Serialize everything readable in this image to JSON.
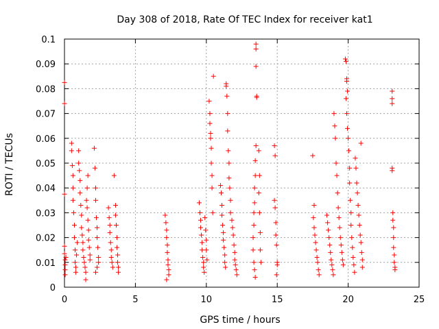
{
  "chart_data": {
    "type": "scatter",
    "title": "Day 308 of 2018, Rate Of TEC Index for receiver kat1",
    "xlabel": "GPS time / hours",
    "ylabel": "ROTI / TECUs",
    "xlim": [
      0,
      25
    ],
    "ylim": [
      0,
      0.1
    ],
    "x_ticks": [
      "0",
      "5",
      "10",
      "15",
      "20",
      "25"
    ],
    "y_ticks": [
      "0",
      "0.01",
      "0.02",
      "0.03",
      "0.04",
      "0.05",
      "0.06",
      "0.07",
      "0.08",
      "0.09",
      "0.1"
    ],
    "grid": true,
    "marker": "+",
    "color": "#ff0000",
    "series": [
      {
        "points": [
          [
            0.0,
            0.0825
          ],
          [
            0.0,
            0.074
          ],
          [
            0.0,
            0.0375
          ],
          [
            0.0,
            0.0165
          ],
          [
            0.0,
            0.0135
          ],
          [
            0.05,
            0.011
          ],
          [
            0.05,
            0.009
          ],
          [
            0.05,
            0.007
          ],
          [
            0.05,
            0.005
          ],
          [
            0.1,
            0.012
          ],
          [
            0.5,
            0.058
          ],
          [
            0.5,
            0.055
          ],
          [
            0.55,
            0.049
          ],
          [
            0.6,
            0.045
          ],
          [
            0.6,
            0.04
          ],
          [
            0.6,
            0.035
          ],
          [
            0.65,
            0.03
          ],
          [
            0.7,
            0.025
          ],
          [
            0.7,
            0.02
          ],
          [
            0.75,
            0.015
          ],
          [
            0.75,
            0.01
          ],
          [
            0.8,
            0.008
          ],
          [
            0.8,
            0.006
          ],
          [
            0.85,
            0.013
          ],
          [
            0.9,
            0.018
          ],
          [
            1.0,
            0.055
          ],
          [
            1.0,
            0.05
          ],
          [
            1.05,
            0.047
          ],
          [
            1.1,
            0.043
          ],
          [
            1.1,
            0.038
          ],
          [
            1.15,
            0.033
          ],
          [
            1.2,
            0.029
          ],
          [
            1.2,
            0.024
          ],
          [
            1.25,
            0.021
          ],
          [
            1.3,
            0.018
          ],
          [
            1.3,
            0.015
          ],
          [
            1.35,
            0.012
          ],
          [
            1.4,
            0.01
          ],
          [
            1.45,
            0.008
          ],
          [
            1.5,
            0.006
          ],
          [
            1.5,
            0.003
          ],
          [
            1.55,
            0.035
          ],
          [
            1.6,
            0.032
          ],
          [
            1.65,
            0.027
          ],
          [
            1.7,
            0.023
          ],
          [
            1.7,
            0.019
          ],
          [
            1.75,
            0.016
          ],
          [
            1.8,
            0.013
          ],
          [
            1.8,
            0.011
          ],
          [
            1.6,
            0.04
          ],
          [
            1.65,
            0.045
          ],
          [
            2.1,
            0.056
          ],
          [
            2.15,
            0.048
          ],
          [
            2.2,
            0.04
          ],
          [
            2.2,
            0.035
          ],
          [
            2.25,
            0.028
          ],
          [
            2.3,
            0.024
          ],
          [
            2.3,
            0.02
          ],
          [
            2.35,
            0.016
          ],
          [
            2.4,
            0.012
          ],
          [
            2.4,
            0.01
          ],
          [
            2.3,
            0.008
          ],
          [
            2.2,
            0.006
          ],
          [
            3.1,
            0.032
          ],
          [
            3.15,
            0.028
          ],
          [
            3.2,
            0.025
          ],
          [
            3.2,
            0.022
          ],
          [
            3.25,
            0.018
          ],
          [
            3.3,
            0.015
          ],
          [
            3.3,
            0.012
          ],
          [
            3.35,
            0.01
          ],
          [
            3.4,
            0.008
          ],
          [
            3.5,
            0.045
          ],
          [
            3.6,
            0.033
          ],
          [
            3.6,
            0.029
          ],
          [
            3.65,
            0.025
          ],
          [
            3.7,
            0.02
          ],
          [
            3.7,
            0.016
          ],
          [
            3.75,
            0.013
          ],
          [
            3.75,
            0.01
          ],
          [
            3.8,
            0.008
          ],
          [
            3.8,
            0.006
          ],
          [
            7.1,
            0.029
          ],
          [
            7.15,
            0.026
          ],
          [
            7.2,
            0.023
          ],
          [
            7.2,
            0.02
          ],
          [
            7.25,
            0.017
          ],
          [
            7.25,
            0.014
          ],
          [
            7.3,
            0.011
          ],
          [
            7.3,
            0.009
          ],
          [
            7.35,
            0.007
          ],
          [
            7.35,
            0.005
          ],
          [
            7.2,
            0.003
          ],
          [
            9.5,
            0.034
          ],
          [
            9.55,
            0.03
          ],
          [
            9.6,
            0.027
          ],
          [
            9.6,
            0.024
          ],
          [
            9.65,
            0.021
          ],
          [
            9.7,
            0.018
          ],
          [
            9.7,
            0.015
          ],
          [
            9.75,
            0.012
          ],
          [
            9.8,
            0.01
          ],
          [
            9.8,
            0.008
          ],
          [
            9.85,
            0.006
          ],
          [
            9.9,
            0.028
          ],
          [
            9.95,
            0.023
          ],
          [
            10.0,
            0.019
          ],
          [
            10.0,
            0.015
          ],
          [
            10.05,
            0.011
          ],
          [
            10.2,
            0.075
          ],
          [
            10.25,
            0.07
          ],
          [
            10.25,
            0.066
          ],
          [
            10.3,
            0.062
          ],
          [
            10.3,
            0.06
          ],
          [
            10.35,
            0.056
          ],
          [
            10.35,
            0.05
          ],
          [
            10.4,
            0.045
          ],
          [
            10.4,
            0.04
          ],
          [
            10.45,
            0.03
          ],
          [
            10.5,
            0.085
          ],
          [
            11.0,
            0.041
          ],
          [
            11.05,
            0.038
          ],
          [
            11.1,
            0.033
          ],
          [
            11.1,
            0.029
          ],
          [
            11.15,
            0.025
          ],
          [
            11.2,
            0.022
          ],
          [
            11.2,
            0.019
          ],
          [
            11.25,
            0.016
          ],
          [
            11.3,
            0.013
          ],
          [
            11.3,
            0.01
          ],
          [
            11.35,
            0.008
          ],
          [
            11.4,
            0.082
          ],
          [
            11.4,
            0.081
          ],
          [
            11.45,
            0.077
          ],
          [
            11.5,
            0.07
          ],
          [
            11.5,
            0.063
          ],
          [
            11.55,
            0.055
          ],
          [
            11.6,
            0.05
          ],
          [
            11.6,
            0.044
          ],
          [
            11.65,
            0.04
          ],
          [
            11.7,
            0.035
          ],
          [
            11.7,
            0.03
          ],
          [
            11.8,
            0.027
          ],
          [
            11.85,
            0.024
          ],
          [
            11.9,
            0.021
          ],
          [
            11.95,
            0.017
          ],
          [
            12.0,
            0.014
          ],
          [
            12.0,
            0.011
          ],
          [
            12.05,
            0.009
          ],
          [
            12.1,
            0.007
          ],
          [
            12.15,
            0.005
          ],
          [
            13.5,
            0.098
          ],
          [
            13.5,
            0.096
          ],
          [
            13.5,
            0.089
          ],
          [
            13.55,
            0.077
          ],
          [
            13.55,
            0.0765
          ],
          [
            13.5,
            0.057
          ],
          [
            13.45,
            0.051
          ],
          [
            13.45,
            0.045
          ],
          [
            13.4,
            0.04
          ],
          [
            13.4,
            0.034
          ],
          [
            13.35,
            0.03
          ],
          [
            13.35,
            0.025
          ],
          [
            13.3,
            0.02
          ],
          [
            13.3,
            0.015
          ],
          [
            13.35,
            0.01
          ],
          [
            13.4,
            0.007
          ],
          [
            13.45,
            0.004
          ],
          [
            13.7,
            0.055
          ],
          [
            13.75,
            0.045
          ],
          [
            13.7,
            0.038
          ],
          [
            13.75,
            0.03
          ],
          [
            13.8,
            0.022
          ],
          [
            13.8,
            0.015
          ],
          [
            13.85,
            0.01
          ],
          [
            14.8,
            0.057
          ],
          [
            14.85,
            0.053
          ],
          [
            14.8,
            0.035
          ],
          [
            14.85,
            0.032
          ],
          [
            14.9,
            0.026
          ],
          [
            14.9,
            0.021
          ],
          [
            14.95,
            0.017
          ],
          [
            15.0,
            0.01
          ],
          [
            15.0,
            0.009
          ],
          [
            14.95,
            0.005
          ],
          [
            17.5,
            0.053
          ],
          [
            17.6,
            0.033
          ],
          [
            17.55,
            0.028
          ],
          [
            17.6,
            0.024
          ],
          [
            17.65,
            0.021
          ],
          [
            17.7,
            0.018
          ],
          [
            17.75,
            0.015
          ],
          [
            17.8,
            0.012
          ],
          [
            17.85,
            0.01
          ],
          [
            17.9,
            0.007
          ],
          [
            17.95,
            0.005
          ],
          [
            18.5,
            0.029
          ],
          [
            18.55,
            0.026
          ],
          [
            18.6,
            0.023
          ],
          [
            18.65,
            0.02
          ],
          [
            18.7,
            0.017
          ],
          [
            18.75,
            0.014
          ],
          [
            18.8,
            0.011
          ],
          [
            18.85,
            0.009
          ],
          [
            18.9,
            0.007
          ],
          [
            18.95,
            0.005
          ],
          [
            19.0,
            0.07
          ],
          [
            19.05,
            0.065
          ],
          [
            19.1,
            0.06
          ],
          [
            19.15,
            0.05
          ],
          [
            19.2,
            0.045
          ],
          [
            19.25,
            0.038
          ],
          [
            19.3,
            0.032
          ],
          [
            19.35,
            0.028
          ],
          [
            19.4,
            0.024
          ],
          [
            19.45,
            0.02
          ],
          [
            19.5,
            0.017
          ],
          [
            19.55,
            0.014
          ],
          [
            19.6,
            0.011
          ],
          [
            19.65,
            0.009
          ],
          [
            19.8,
            0.092
          ],
          [
            19.85,
            0.091
          ],
          [
            19.9,
            0.084
          ],
          [
            19.9,
            0.083
          ],
          [
            19.95,
            0.079
          ],
          [
            19.85,
            0.076
          ],
          [
            19.9,
            0.07
          ],
          [
            19.95,
            0.064
          ],
          [
            20.0,
            0.06
          ],
          [
            20.05,
            0.055
          ],
          [
            20.1,
            0.048
          ],
          [
            20.1,
            0.042
          ],
          [
            20.15,
            0.035
          ],
          [
            20.2,
            0.03
          ],
          [
            20.2,
            0.025
          ],
          [
            20.25,
            0.02
          ],
          [
            20.3,
            0.016
          ],
          [
            20.35,
            0.012
          ],
          [
            20.4,
            0.009
          ],
          [
            20.45,
            0.006
          ],
          [
            20.5,
            0.052
          ],
          [
            20.55,
            0.048
          ],
          [
            20.6,
            0.042
          ],
          [
            20.65,
            0.038
          ],
          [
            20.7,
            0.033
          ],
          [
            20.75,
            0.029
          ],
          [
            20.8,
            0.025
          ],
          [
            20.85,
            0.021
          ],
          [
            20.9,
            0.018
          ],
          [
            20.95,
            0.014
          ],
          [
            21.0,
            0.011
          ],
          [
            21.0,
            0.008
          ],
          [
            20.9,
            0.058
          ],
          [
            23.1,
            0.079
          ],
          [
            23.1,
            0.076
          ],
          [
            23.1,
            0.074
          ],
          [
            23.1,
            0.048
          ],
          [
            23.1,
            0.047
          ],
          [
            23.15,
            0.03
          ],
          [
            23.15,
            0.027
          ],
          [
            23.2,
            0.024
          ],
          [
            23.2,
            0.02
          ],
          [
            23.2,
            0.016
          ],
          [
            23.25,
            0.013
          ],
          [
            23.25,
            0.01
          ],
          [
            23.3,
            0.008
          ],
          [
            23.3,
            0.007
          ]
        ]
      }
    ]
  }
}
